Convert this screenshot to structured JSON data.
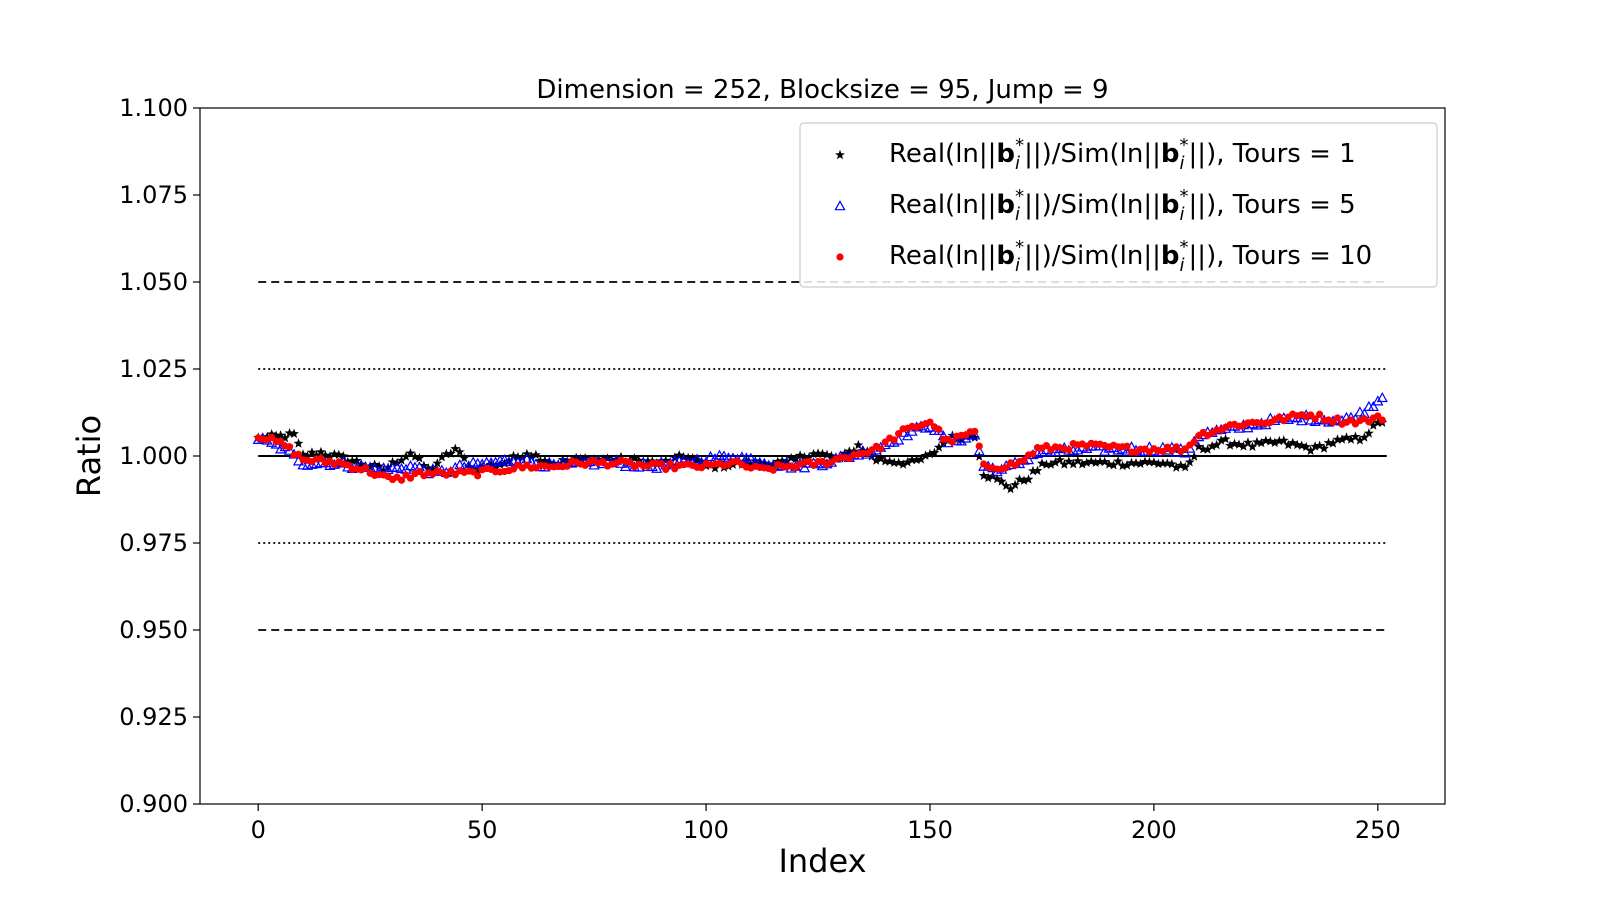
{
  "chart_data": {
    "type": "scatter",
    "title": "Dimension = 252, Blocksize = 95, Jump = 9",
    "xlabel": "Index",
    "ylabel": "Ratio",
    "xlim": [
      -13,
      265
    ],
    "ylim": [
      0.9,
      1.1
    ],
    "x_ticks": [
      0,
      50,
      100,
      150,
      200,
      250
    ],
    "x_tick_labels": [
      "0",
      "50",
      "100",
      "150",
      "200",
      "250"
    ],
    "y_ticks": [
      0.9,
      0.925,
      0.95,
      0.975,
      1.0,
      1.025,
      1.05,
      1.075,
      1.1
    ],
    "y_tick_labels": [
      "0.900",
      "0.925",
      "0.950",
      "0.975",
      "1.000",
      "1.025",
      "1.050",
      "1.075",
      "1.100"
    ],
    "grid": false,
    "legend_position": "top-right",
    "reference_lines": [
      {
        "y": 1.05,
        "style": "dashed",
        "x_range": [
          0,
          252
        ]
      },
      {
        "y": 1.025,
        "style": "dotted",
        "x_range": [
          0,
          252
        ]
      },
      {
        "y": 1.0,
        "style": "solid",
        "x_range": [
          0,
          252
        ]
      },
      {
        "y": 0.975,
        "style": "dotted",
        "x_range": [
          0,
          252
        ]
      },
      {
        "y": 0.95,
        "style": "dashed",
        "x_range": [
          0,
          252
        ]
      }
    ],
    "series": [
      {
        "legend": {
          "prefix": "Real(ln||",
          "bold": "b",
          "mid": "||)/Sim(ln||",
          "suffix": "||), Tours = 1",
          "sub": "i",
          "sup": "*"
        },
        "marker": "star",
        "color": "#000000",
        "knots": [
          [
            0,
            1.005
          ],
          [
            8,
            1.006
          ],
          [
            10,
            1.0
          ],
          [
            14,
            1.001
          ],
          [
            20,
            0.999
          ],
          [
            28,
            0.996
          ],
          [
            34,
            1.001
          ],
          [
            38,
            0.996
          ],
          [
            44,
            1.002
          ],
          [
            48,
            0.996
          ],
          [
            55,
            0.998
          ],
          [
            60,
            1.001
          ],
          [
            66,
            0.998
          ],
          [
            72,
            0.999
          ],
          [
            80,
            0.999
          ],
          [
            90,
            0.998
          ],
          [
            96,
            1.0
          ],
          [
            100,
            0.997
          ],
          [
            110,
            0.998
          ],
          [
            118,
            0.998
          ],
          [
            124,
            1.001
          ],
          [
            130,
            0.999
          ],
          [
            134,
            1.003
          ],
          [
            138,
            0.999
          ],
          [
            146,
            0.998
          ],
          [
            150,
            1.0
          ],
          [
            154,
            1.005
          ],
          [
            160,
            1.006
          ],
          [
            162,
            0.995
          ],
          [
            168,
            0.991
          ],
          [
            172,
            0.994
          ],
          [
            176,
            0.998
          ],
          [
            185,
            0.998
          ],
          [
            195,
            0.998
          ],
          [
            203,
            0.998
          ],
          [
            207,
            0.996
          ],
          [
            210,
            1.002
          ],
          [
            216,
            1.004
          ],
          [
            222,
            1.003
          ],
          [
            228,
            1.004
          ],
          [
            236,
            1.002
          ],
          [
            240,
            1.004
          ],
          [
            246,
            1.005
          ],
          [
            251,
            1.01
          ]
        ]
      },
      {
        "legend": {
          "prefix": "Real(ln||",
          "bold": "b",
          "mid": "||)/Sim(ln||",
          "suffix": "||), Tours = 5",
          "sub": "i",
          "sup": "*"
        },
        "marker": "triangle",
        "color": "#0000ff",
        "knots": [
          [
            0,
            1.005
          ],
          [
            6,
            1.002
          ],
          [
            10,
            0.998
          ],
          [
            16,
            0.998
          ],
          [
            22,
            0.997
          ],
          [
            28,
            0.996
          ],
          [
            34,
            0.997
          ],
          [
            40,
            0.995
          ],
          [
            46,
            0.997
          ],
          [
            52,
            0.998
          ],
          [
            58,
            0.999
          ],
          [
            66,
            0.997
          ],
          [
            74,
            0.998
          ],
          [
            80,
            0.998
          ],
          [
            88,
            0.997
          ],
          [
            94,
            0.998
          ],
          [
            100,
            0.999
          ],
          [
            106,
            1.0
          ],
          [
            114,
            0.998
          ],
          [
            120,
            0.997
          ],
          [
            126,
            0.998
          ],
          [
            132,
            1.0
          ],
          [
            138,
            1.002
          ],
          [
            144,
            1.006
          ],
          [
            150,
            1.009
          ],
          [
            154,
            1.004
          ],
          [
            160,
            1.006
          ],
          [
            162,
            0.997
          ],
          [
            166,
            0.996
          ],
          [
            170,
            0.998
          ],
          [
            174,
            1.001
          ],
          [
            185,
            1.002
          ],
          [
            195,
            1.002
          ],
          [
            203,
            1.002
          ],
          [
            207,
            1.001
          ],
          [
            210,
            1.006
          ],
          [
            218,
            1.008
          ],
          [
            226,
            1.01
          ],
          [
            234,
            1.011
          ],
          [
            242,
            1.01
          ],
          [
            246,
            1.012
          ],
          [
            251,
            1.017
          ]
        ]
      },
      {
        "legend": {
          "prefix": "Real(ln||",
          "bold": "b",
          "mid": "||)/Sim(ln||",
          "suffix": "||), Tours = 10",
          "sub": "i",
          "sup": "*"
        },
        "marker": "circle",
        "color": "#ff0000",
        "knots": [
          [
            0,
            1.006
          ],
          [
            6,
            1.003
          ],
          [
            10,
            0.999
          ],
          [
            18,
            0.998
          ],
          [
            24,
            0.996
          ],
          [
            30,
            0.993
          ],
          [
            36,
            0.995
          ],
          [
            42,
            0.995
          ],
          [
            48,
            0.995
          ],
          [
            54,
            0.996
          ],
          [
            60,
            0.997
          ],
          [
            66,
            0.997
          ],
          [
            72,
            0.998
          ],
          [
            80,
            0.998
          ],
          [
            88,
            0.997
          ],
          [
            94,
            0.997
          ],
          [
            100,
            0.997
          ],
          [
            106,
            0.998
          ],
          [
            112,
            0.996
          ],
          [
            118,
            0.997
          ],
          [
            126,
            0.998
          ],
          [
            132,
            1.0
          ],
          [
            138,
            1.002
          ],
          [
            144,
            1.007
          ],
          [
            150,
            1.01
          ],
          [
            154,
            1.004
          ],
          [
            160,
            1.007
          ],
          [
            162,
            0.997
          ],
          [
            166,
            0.997
          ],
          [
            170,
            0.998
          ],
          [
            174,
            1.002
          ],
          [
            185,
            1.003
          ],
          [
            195,
            1.002
          ],
          [
            203,
            1.002
          ],
          [
            207,
            1.002
          ],
          [
            210,
            1.006
          ],
          [
            218,
            1.009
          ],
          [
            226,
            1.01
          ],
          [
            234,
            1.012
          ],
          [
            242,
            1.01
          ],
          [
            246,
            1.01
          ],
          [
            251,
            1.011
          ]
        ]
      }
    ]
  }
}
